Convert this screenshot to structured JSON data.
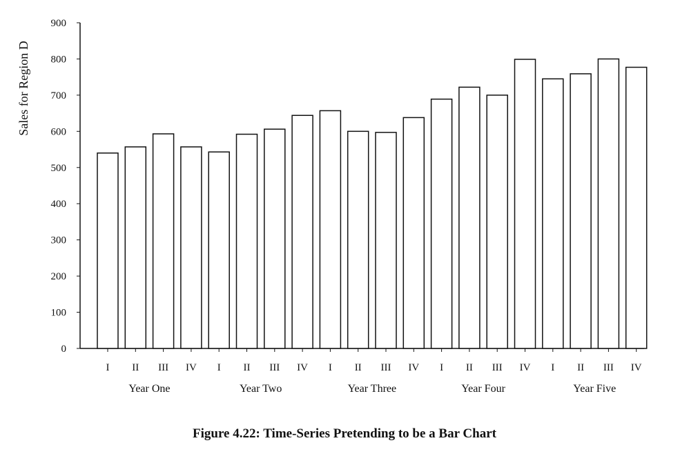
{
  "chart_data": {
    "type": "bar",
    "title": "",
    "ylabel": "Sales for Region D",
    "xlabel": "",
    "ylim": [
      0,
      900
    ],
    "yticks": [
      0,
      100,
      200,
      300,
      400,
      500,
      600,
      700,
      800,
      900
    ],
    "categories": [
      "I",
      "II",
      "III",
      "IV",
      "I",
      "II",
      "III",
      "IV",
      "I",
      "II",
      "III",
      "IV",
      "I",
      "II",
      "III",
      "IV",
      "I",
      "II",
      "III",
      "IV"
    ],
    "groups": [
      "Year One",
      "Year Two",
      "Year Three",
      "Year Four",
      "Year Five"
    ],
    "values": [
      540,
      557,
      593,
      557,
      543,
      592,
      606,
      644,
      657,
      600,
      597,
      638,
      689,
      722,
      700,
      799,
      745,
      759,
      800,
      777
    ],
    "grid": false,
    "legend": "none"
  },
  "caption": "Figure 4.22:  Time-Series Pretending to be a Bar Chart",
  "colors": {
    "bar_fill": "#ffffff",
    "bar_stroke": "#111111",
    "axis": "#111111"
  }
}
